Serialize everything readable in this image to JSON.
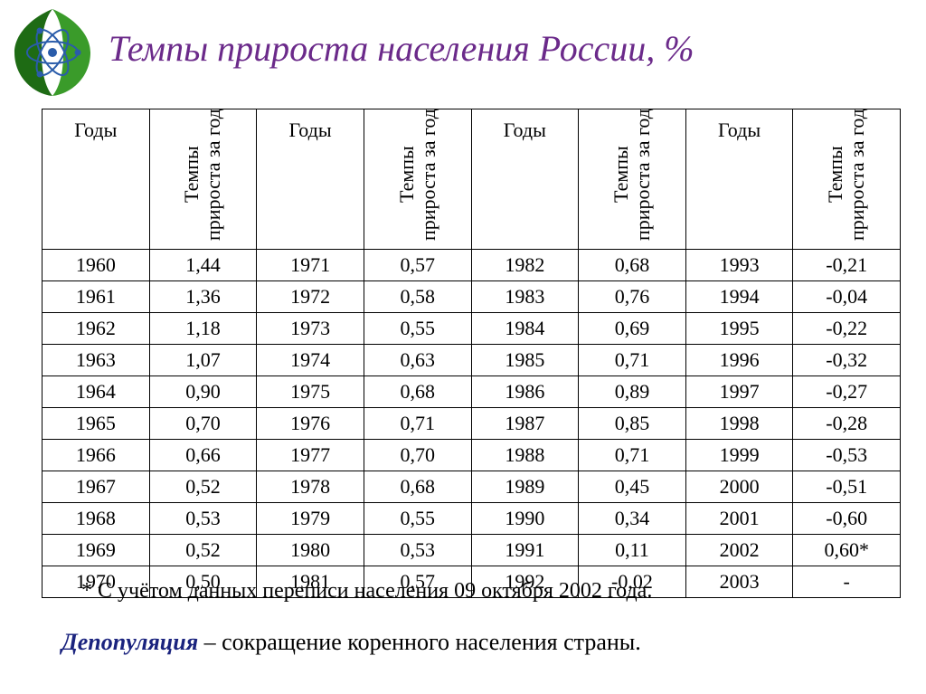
{
  "title": "Темпы прироста населения России, %",
  "logo": {
    "leaf_color": "#3a9b2a",
    "leaf_dark": "#1e6b14",
    "orbit_color": "#2a5caa",
    "node_color": "#2a5caa",
    "bg": "#ffffff"
  },
  "table": {
    "headers": {
      "year": "Годы",
      "rate": "Темпы прироста за год"
    },
    "columns_count": 4,
    "rows": [
      [
        "1960",
        "1,44",
        "1971",
        "0,57",
        "1982",
        "0,68",
        "1993",
        "-0,21"
      ],
      [
        "1961",
        "1,36",
        "1972",
        "0,58",
        "1983",
        "0,76",
        "1994",
        "-0,04"
      ],
      [
        "1962",
        "1,18",
        "1973",
        "0,55",
        "1984",
        "0,69",
        "1995",
        "-0,22"
      ],
      [
        "1963",
        "1,07",
        "1974",
        "0,63",
        "1985",
        "0,71",
        "1996",
        "-0,32"
      ],
      [
        "1964",
        "0,90",
        "1975",
        "0,68",
        "1986",
        "0,89",
        "1997",
        "-0,27"
      ],
      [
        "1965",
        "0,70",
        "1976",
        "0,71",
        "1987",
        "0,85",
        "1998",
        "-0,28"
      ],
      [
        "1966",
        "0,66",
        "1977",
        "0,70",
        "1988",
        "0,71",
        "1999",
        "-0,53"
      ],
      [
        "1967",
        "0,52",
        "1978",
        "0,68",
        "1989",
        "0,45",
        "2000",
        "-0,51"
      ],
      [
        "1968",
        "0,53",
        "1979",
        "0,55",
        "1990",
        "0,34",
        "2001",
        "-0,60"
      ],
      [
        "1969",
        "0,52",
        "1980",
        "0,53",
        "1991",
        "0,11",
        "2002",
        "0,60*"
      ],
      [
        "1970",
        "0,50",
        "1981",
        "0,57",
        "1992",
        "-0,02",
        "2003",
        "-"
      ]
    ],
    "border_color": "#000000",
    "cell_fontsize": 22,
    "header_fontsize": 22
  },
  "footnote": "* С учётом данных переписи населения 09 октября 2002 года.",
  "definition": {
    "term": "Депопуляция",
    "dash": " – ",
    "text": "сокращение коренного населения страны."
  },
  "colors": {
    "title": "#6b2a8a",
    "term": "#1a237e",
    "text": "#000000",
    "background": "#ffffff"
  },
  "typography": {
    "title_fontsize": 40,
    "title_style": "italic",
    "footnote_fontsize": 24,
    "definition_fontsize": 26,
    "font_family": "Times New Roman"
  }
}
